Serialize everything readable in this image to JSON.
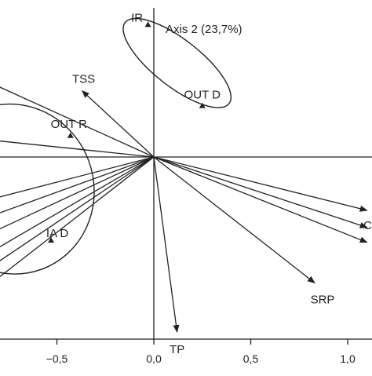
{
  "chart_data": {
    "type": "scatter",
    "title": "",
    "xlabel": "",
    "ylabel": "Axis 2 (23,7%)",
    "xlim": [
      -0.79,
      1.1
    ],
    "ylim": [
      -0.95,
      0.76
    ],
    "x_ticks": [
      {
        "value": -0.5,
        "label": "−0,5"
      },
      {
        "value": 0.0,
        "label": "0,0"
      },
      {
        "value": 0.5,
        "label": "0,5"
      },
      {
        "value": 1.0,
        "label": "1,0"
      }
    ],
    "grid": false,
    "groups": [
      {
        "label": "IR",
        "x": -0.03,
        "y": 0.62
      },
      {
        "label": "OUT D",
        "x": 0.25,
        "y": 0.24
      },
      {
        "label": "OUT R",
        "x": -0.43,
        "y": 0.1
      },
      {
        "label": "IA D",
        "x": -0.53,
        "y": -0.39
      }
    ],
    "ellipses": [
      {
        "cx": 0.12,
        "cy": 0.44,
        "rx": 0.34,
        "ry": 0.11,
        "angle_deg": 38
      },
      {
        "cx": -0.73,
        "cy": -0.15,
        "rx": 0.42,
        "ry": 0.4,
        "angle_deg": -20
      }
    ],
    "vectors": [
      {
        "label": "TSS",
        "x": -0.37,
        "y": 0.31
      },
      {
        "label": "TP",
        "x": 0.12,
        "y": -0.82
      },
      {
        "label": "SRP",
        "x": 0.83,
        "y": -0.59
      },
      {
        "label": "",
        "x": 1.1,
        "y": -0.25
      },
      {
        "label": "",
        "x": 1.1,
        "y": -0.33
      },
      {
        "label": "",
        "x": 1.1,
        "y": -0.4
      },
      {
        "label": "",
        "x": -0.85,
        "y": 0.35
      },
      {
        "label": "",
        "x": -0.85,
        "y": 0.08
      },
      {
        "label": "",
        "x": -0.85,
        "y": -0.2
      },
      {
        "label": "",
        "x": -0.85,
        "y": -0.28
      },
      {
        "label": "",
        "x": -0.85,
        "y": -0.36
      },
      {
        "label": "",
        "x": -0.85,
        "y": -0.45
      },
      {
        "label": "",
        "x": -0.85,
        "y": -0.52
      },
      {
        "label": "",
        "x": -0.85,
        "y": -0.6
      }
    ],
    "edge_label": "C"
  }
}
